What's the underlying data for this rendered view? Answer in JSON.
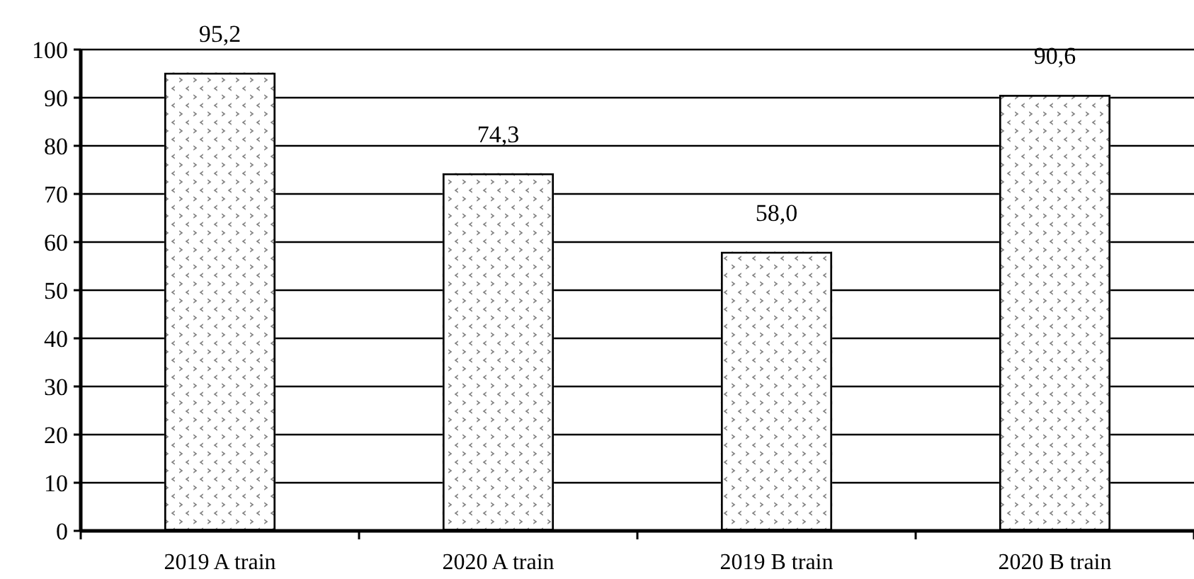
{
  "chart_data": {
    "type": "bar",
    "categories": [
      "2019 A train",
      "2020 A train",
      "2019 B train",
      "2020 B train"
    ],
    "values": [
      95.2,
      74.3,
      58.0,
      90.6
    ],
    "value_labels": [
      "95,2",
      "74,3",
      "58,0",
      "90,6"
    ],
    "color": "#808080",
    "ylim": [
      0,
      100
    ],
    "yticks": [
      0,
      10,
      20,
      30,
      40,
      50,
      60,
      70,
      80,
      90,
      100
    ],
    "grid": "y"
  }
}
